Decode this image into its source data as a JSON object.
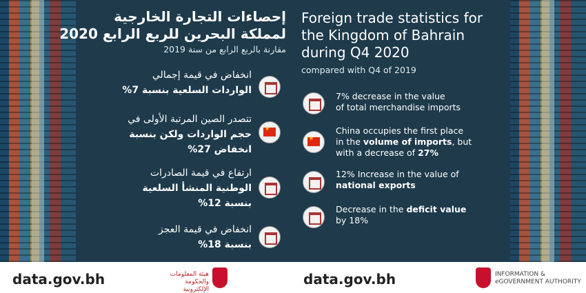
{
  "arabic": {
    "title": [
      "إحصاءات التجارة الخارجية",
      "لمملكة البحرين للربع الرابع 2020"
    ],
    "subtitle": "مقارنة بالربع الرابع من سنة 2019",
    "items": [
      {
        "lines": [
          [
            "انخفاض في قيمة إجمالي"
          ],
          [
            "الواردات السلعية بنسبة 7%"
          ]
        ]
      },
      {
        "lines": [
          [
            "تتصدر الصين المرتبة الأولى في"
          ],
          [
            "حجم الواردات ولكن  بنسبة"
          ],
          [
            "انخفاض 27%"
          ]
        ]
      },
      {
        "lines": [
          [
            "ارتفاع في قيمة الصادرات"
          ],
          [
            "الوطنية المنشأ السلعية"
          ],
          [
            "بنسبة 12%"
          ]
        ]
      },
      {
        "lines": [
          [
            "انخفاض في قيمة العجز"
          ],
          [
            "بنسبة 18%"
          ]
        ]
      }
    ],
    "footer": {
      "site": "data.gov.bh",
      "logo": [
        "هيئة المعلومات",
        "والحكومة الإلكترونية"
      ]
    }
  },
  "english": {
    "title": [
      "Foreign trade statistics for",
      "the Kingdom of Bahrain",
      "during Q4 2020"
    ],
    "subtitle": "compared with Q4 of 2019",
    "items": [
      {
        "lines": [
          [
            "7% decrease in the value"
          ],
          [
            "of total ",
            "merchandise imports"
          ]
        ]
      },
      {
        "lines": [
          [
            "China occupies the first place"
          ],
          [
            "in the ",
            "volume of imports",
            ", but"
          ],
          [
            "with a decrease of ",
            "27%"
          ]
        ]
      },
      {
        "lines": [
          [
            "12% Increase in the value of"
          ],
          [
            "national exports"
          ]
        ]
      },
      {
        "lines": [
          [
            "Decrease in the ",
            "deficit value"
          ],
          [
            "by 18%"
          ]
        ]
      }
    ],
    "footer": {
      "site": "data.gov.bh",
      "logo": [
        "INFORMATION &",
        "eGOVERNMENT AUTHORITY"
      ]
    }
  }
}
